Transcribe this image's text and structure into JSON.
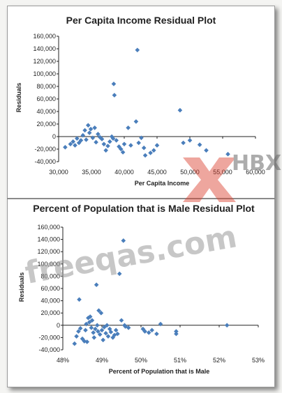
{
  "watermark": {
    "site": "freeqas.com",
    "brand": "HBX"
  },
  "chart_data": [
    {
      "type": "scatter",
      "title": "Per Capita Income Residual Plot",
      "xlabel": "Per Capita Income",
      "ylabel": "Residuals",
      "xlim": [
        30000,
        60000
      ],
      "ylim": [
        -40000,
        160000
      ],
      "xticks": [
        "30,000",
        "35,000",
        "40,000",
        "45,000",
        "50,000",
        "55,000",
        "60,000"
      ],
      "yticks": [
        "-40,000",
        "-20,000",
        "0",
        "20,000",
        "40,000",
        "60,000",
        "80,000",
        "100,000",
        "120,000",
        "140,000",
        "160,000"
      ],
      "marker_color": "#4a7ebb",
      "points": [
        [
          31000,
          -17000
        ],
        [
          31800,
          -12000
        ],
        [
          32200,
          -8000
        ],
        [
          32500,
          -14000
        ],
        [
          32800,
          -3000
        ],
        [
          33100,
          -10000
        ],
        [
          33400,
          -6000
        ],
        [
          33700,
          2000
        ],
        [
          34000,
          10000
        ],
        [
          34200,
          -5000
        ],
        [
          34500,
          18000
        ],
        [
          34700,
          6000
        ],
        [
          34900,
          12000
        ],
        [
          35200,
          -2000
        ],
        [
          35500,
          14000
        ],
        [
          35700,
          -9000
        ],
        [
          36000,
          4000
        ],
        [
          36300,
          -1000
        ],
        [
          36600,
          -4000
        ],
        [
          36900,
          -12000
        ],
        [
          37200,
          -22000
        ],
        [
          37500,
          -15000
        ],
        [
          37800,
          -8000
        ],
        [
          38100,
          0
        ],
        [
          38300,
          -3000
        ],
        [
          38400,
          84000
        ],
        [
          38500,
          66000
        ],
        [
          38800,
          -6000
        ],
        [
          39200,
          -16000
        ],
        [
          39500,
          -20000
        ],
        [
          39800,
          -25000
        ],
        [
          40000,
          -12000
        ],
        [
          40600,
          14000
        ],
        [
          41000,
          -14000
        ],
        [
          41800,
          24000
        ],
        [
          42000,
          138000
        ],
        [
          42200,
          -10000
        ],
        [
          42600,
          -2000
        ],
        [
          43000,
          -18000
        ],
        [
          43200,
          -30000
        ],
        [
          44000,
          -26000
        ],
        [
          44500,
          -22000
        ],
        [
          45000,
          -14000
        ],
        [
          48500,
          42000
        ],
        [
          49000,
          -10000
        ],
        [
          50000,
          -6000
        ],
        [
          51500,
          -13000
        ],
        [
          52500,
          -22000
        ],
        [
          55800,
          -28000
        ]
      ]
    },
    {
      "type": "scatter",
      "title": "Percent of Population that is Male Residual Plot",
      "xlabel": "Percent of Population that is Male",
      "ylabel": "Residuals",
      "xlim": [
        0.48,
        0.53
      ],
      "ylim": [
        -40000,
        160000
      ],
      "xticks": [
        "48%",
        "49%",
        "50%",
        "51%",
        "52%",
        "53%"
      ],
      "yticks": [
        "-40,000",
        "-20,000",
        "0",
        "20,000",
        "40,000",
        "60,000",
        "80,000",
        "100,000",
        "120,000",
        "140,000",
        "160,000"
      ],
      "marker_color": "#4a7ebb",
      "points": [
        [
          0.483,
          -30000
        ],
        [
          0.4835,
          -18000
        ],
        [
          0.484,
          -10000
        ],
        [
          0.4842,
          42000
        ],
        [
          0.4845,
          -5000
        ],
        [
          0.485,
          -22000
        ],
        [
          0.4855,
          -26000
        ],
        [
          0.4858,
          -8000
        ],
        [
          0.486,
          2000
        ],
        [
          0.4862,
          -27000
        ],
        [
          0.4865,
          12000
        ],
        [
          0.4868,
          5000
        ],
        [
          0.487,
          14000
        ],
        [
          0.4873,
          -4000
        ],
        [
          0.4875,
          8000
        ],
        [
          0.4878,
          -12000
        ],
        [
          0.488,
          -20000
        ],
        [
          0.4883,
          -6000
        ],
        [
          0.4886,
          66000
        ],
        [
          0.4888,
          0
        ],
        [
          0.489,
          -10000
        ],
        [
          0.4892,
          24000
        ],
        [
          0.4895,
          -15000
        ],
        [
          0.4898,
          20000
        ],
        [
          0.49,
          -8000
        ],
        [
          0.4903,
          -24000
        ],
        [
          0.4906,
          -3000
        ],
        [
          0.491,
          -13000
        ],
        [
          0.4913,
          0
        ],
        [
          0.4916,
          -18000
        ],
        [
          0.492,
          -6000
        ],
        [
          0.4923,
          -11000
        ],
        [
          0.4928,
          -20000
        ],
        [
          0.4932,
          -16000
        ],
        [
          0.4936,
          -8000
        ],
        [
          0.494,
          -14000
        ],
        [
          0.4945,
          84000
        ],
        [
          0.495,
          8000
        ],
        [
          0.4955,
          138000
        ],
        [
          0.4958,
          0
        ],
        [
          0.496,
          -2000
        ],
        [
          0.4968,
          -4000
        ],
        [
          0.5005,
          -6000
        ],
        [
          0.501,
          -10000
        ],
        [
          0.502,
          -12000
        ],
        [
          0.5028,
          -8000
        ],
        [
          0.504,
          -14000
        ],
        [
          0.505,
          2000
        ],
        [
          0.509,
          -10000
        ],
        [
          0.509,
          -14000
        ],
        [
          0.522,
          0
        ]
      ]
    }
  ]
}
